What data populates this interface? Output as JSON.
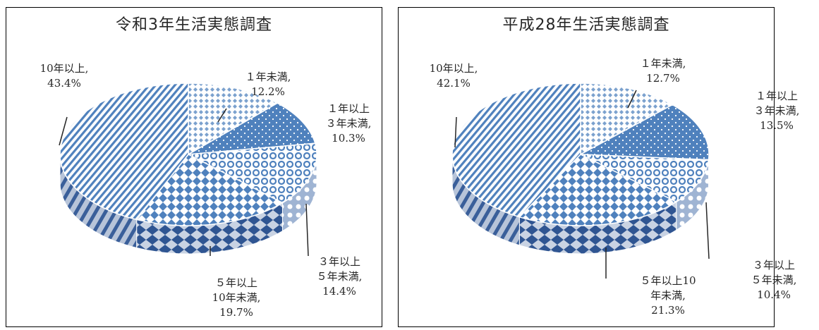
{
  "chart_data": [
    {
      "type": "pie",
      "title": "令和3年生活実態調査",
      "slices": [
        {
          "name": "１年未満,",
          "value": 12.2,
          "value_label": "12.2%"
        },
        {
          "name": "１年以上\n３年未満,",
          "value": 10.3,
          "value_label": "10.3%"
        },
        {
          "name": "３年以上\n５年未満,",
          "value": 14.4,
          "value_label": "14.4%"
        },
        {
          "name": "５年以上\n10年未満,",
          "value": 19.7,
          "value_label": "19.7%"
        },
        {
          "name": "10年以上,",
          "value": 43.4,
          "value_label": "43.4%"
        }
      ]
    },
    {
      "type": "pie",
      "title": "平成28年生活実態調査",
      "slices": [
        {
          "name": "１年未満,",
          "value": 12.7,
          "value_label": "12.7%"
        },
        {
          "name": "１年以上\n３年未満,",
          "value": 13.5,
          "value_label": "13.5%"
        },
        {
          "name": "３年以上\n５年未満,",
          "value": 10.4,
          "value_label": "10.4%"
        },
        {
          "name": "５年以上10\n年未満,",
          "value": 21.3,
          "value_label": "21.3%"
        },
        {
          "name": "10年以上,",
          "value": 42.1,
          "value_label": "42.1%"
        }
      ]
    }
  ]
}
